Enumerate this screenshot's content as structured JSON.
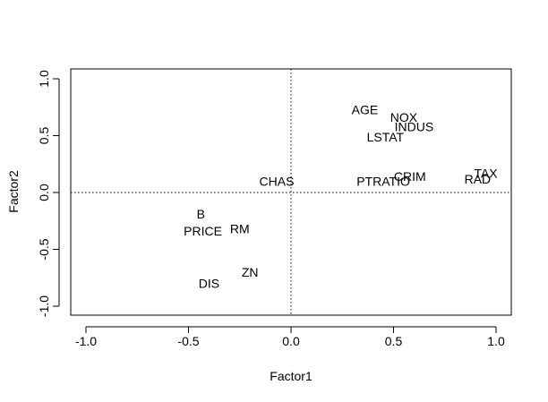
{
  "chart_data": {
    "type": "scatter",
    "title": "",
    "xlabel": "Factor1",
    "ylabel": "Factor2",
    "xlim": [
      -1.0,
      1.0
    ],
    "ylim": [
      -1.0,
      1.0
    ],
    "x_ticks": [
      -1.0,
      -0.5,
      0.0,
      0.5,
      1.0
    ],
    "y_ticks": [
      -1.0,
      -0.5,
      0.0,
      0.5,
      1.0
    ],
    "x_tick_labels": [
      "-1.0",
      "-0.5",
      "0.0",
      "0.5",
      "1.0"
    ],
    "y_tick_labels": [
      "-1.0",
      "-0.5",
      "0.0",
      "0.5",
      "1.0"
    ],
    "grid": false,
    "reference_lines": [
      {
        "orientation": "horizontal",
        "value": 0.0,
        "style": "dotted"
      },
      {
        "orientation": "vertical",
        "value": 0.0,
        "style": "dotted"
      }
    ],
    "points": [
      {
        "label": "AGE",
        "x": 0.36,
        "y": 0.73
      },
      {
        "label": "NOX",
        "x": 0.55,
        "y": 0.66
      },
      {
        "label": "INDUS",
        "x": 0.6,
        "y": 0.58
      },
      {
        "label": "LSTAT",
        "x": 0.46,
        "y": 0.49
      },
      {
        "label": "CHAS",
        "x": -0.07,
        "y": 0.1
      },
      {
        "label": "PTRATIO",
        "x": 0.45,
        "y": 0.1
      },
      {
        "label": "CRIM",
        "x": 0.58,
        "y": 0.14
      },
      {
        "label": "TAX",
        "x": 0.95,
        "y": 0.17
      },
      {
        "label": "RAD",
        "x": 0.91,
        "y": 0.12
      },
      {
        "label": "B",
        "x": -0.44,
        "y": -0.19
      },
      {
        "label": "PRICE",
        "x": -0.43,
        "y": -0.34
      },
      {
        "label": "RM",
        "x": -0.25,
        "y": -0.32
      },
      {
        "label": "ZN",
        "x": -0.2,
        "y": -0.7
      },
      {
        "label": "DIS",
        "x": -0.4,
        "y": -0.8
      }
    ]
  }
}
